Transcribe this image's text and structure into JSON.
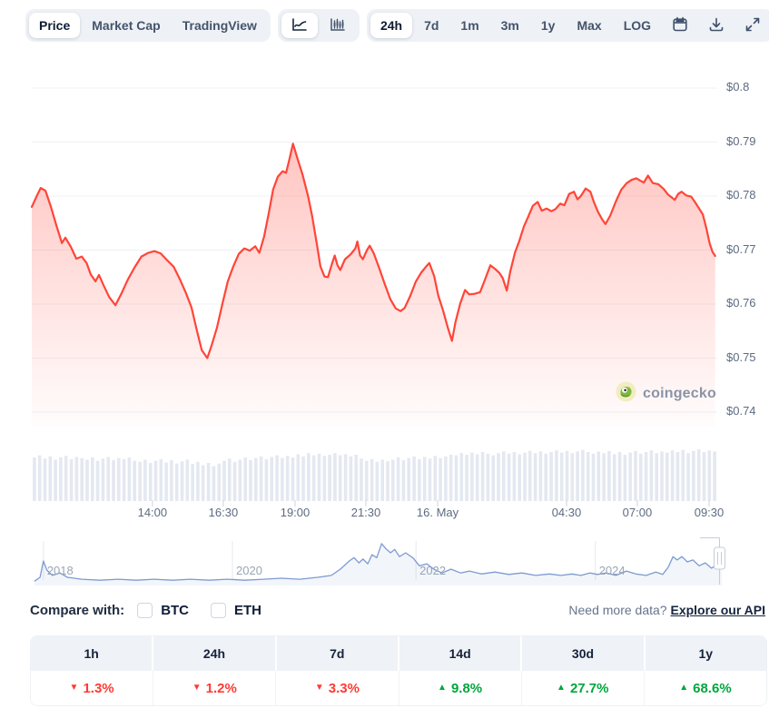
{
  "toolbar": {
    "view_tabs": [
      {
        "label": "Price",
        "selected": true
      },
      {
        "label": "Market Cap",
        "selected": false
      },
      {
        "label": "TradingView",
        "selected": false
      }
    ],
    "chart_types": [
      {
        "icon": "line-chart",
        "selected": true
      },
      {
        "icon": "candlestick-chart",
        "selected": false
      }
    ],
    "ranges": [
      {
        "label": "24h",
        "selected": true
      },
      {
        "label": "7d",
        "selected": false
      },
      {
        "label": "1m",
        "selected": false
      },
      {
        "label": "3m",
        "selected": false
      },
      {
        "label": "1y",
        "selected": false
      },
      {
        "label": "Max",
        "selected": false
      },
      {
        "label": "LOG",
        "selected": false
      }
    ],
    "tools": [
      "calendar",
      "download",
      "fullscreen"
    ]
  },
  "watermark": {
    "brand": "coingecko"
  },
  "colors": {
    "price_line": "#ff4538",
    "area_fill": "rgba(255,77,65,0.33)",
    "down_red": "#ff3a33",
    "up_green": "#00a63d",
    "volume_bar": "#e4e8f0",
    "navigator_line": "#7d9bd2"
  },
  "chart_data": [
    {
      "type": "area",
      "name": "price-24h",
      "ylabel": "price (USD)",
      "ylim": [
        0.7373,
        0.8045
      ],
      "grid": true,
      "legend_position": "none",
      "y_ticks": [
        "$0.8",
        "$0.79",
        "$0.78",
        "$0.77",
        "$0.76",
        "$0.75",
        "$0.74"
      ],
      "y_tick_values": [
        0.8,
        0.79,
        0.78,
        0.77,
        0.76,
        0.75,
        0.74
      ],
      "x_ticks": [
        {
          "label": "14:00",
          "f": 0.176
        },
        {
          "label": "16:30",
          "f": 0.2794
        },
        {
          "label": "19:00",
          "f": 0.3841
        },
        {
          "label": "21:30",
          "f": 0.4874
        },
        {
          "label": "16. May",
          "f": 0.5921
        },
        {
          "label": "04:30",
          "f": 0.7801
        },
        {
          "label": "07:00",
          "f": 0.8834
        },
        {
          "label": "09:30",
          "f": 0.9881
        }
      ],
      "points": [
        [
          0,
          0.778
        ],
        [
          0.008,
          0.7802
        ],
        [
          0.013,
          0.7815
        ],
        [
          0.02,
          0.781
        ],
        [
          0.028,
          0.778
        ],
        [
          0.036,
          0.7745
        ],
        [
          0.044,
          0.7713
        ],
        [
          0.049,
          0.7723
        ],
        [
          0.057,
          0.7706
        ],
        [
          0.065,
          0.7684
        ],
        [
          0.073,
          0.7688
        ],
        [
          0.08,
          0.7676
        ],
        [
          0.086,
          0.7655
        ],
        [
          0.093,
          0.7642
        ],
        [
          0.098,
          0.7654
        ],
        [
          0.105,
          0.7634
        ],
        [
          0.113,
          0.7613
        ],
        [
          0.122,
          0.7598
        ],
        [
          0.131,
          0.762
        ],
        [
          0.14,
          0.7645
        ],
        [
          0.15,
          0.7668
        ],
        [
          0.16,
          0.7688
        ],
        [
          0.17,
          0.7695
        ],
        [
          0.179,
          0.7698
        ],
        [
          0.188,
          0.7694
        ],
        [
          0.197,
          0.7682
        ],
        [
          0.207,
          0.7669
        ],
        [
          0.216,
          0.7646
        ],
        [
          0.225,
          0.762
        ],
        [
          0.233,
          0.7594
        ],
        [
          0.241,
          0.755
        ],
        [
          0.248,
          0.7515
        ],
        [
          0.256,
          0.75
        ],
        [
          0.262,
          0.7522
        ],
        [
          0.27,
          0.7556
        ],
        [
          0.278,
          0.76
        ],
        [
          0.286,
          0.7642
        ],
        [
          0.294,
          0.767
        ],
        [
          0.302,
          0.7693
        ],
        [
          0.31,
          0.7703
        ],
        [
          0.318,
          0.7699
        ],
        [
          0.326,
          0.7707
        ],
        [
          0.332,
          0.7695
        ],
        [
          0.339,
          0.7725
        ],
        [
          0.346,
          0.777
        ],
        [
          0.352,
          0.7812
        ],
        [
          0.359,
          0.7836
        ],
        [
          0.366,
          0.7846
        ],
        [
          0.371,
          0.7843
        ],
        [
          0.376,
          0.7869
        ],
        [
          0.381,
          0.7897
        ],
        [
          0.388,
          0.7868
        ],
        [
          0.395,
          0.784
        ],
        [
          0.403,
          0.78
        ],
        [
          0.409,
          0.7763
        ],
        [
          0.416,
          0.771
        ],
        [
          0.421,
          0.767
        ],
        [
          0.427,
          0.7651
        ],
        [
          0.432,
          0.765
        ],
        [
          0.438,
          0.7675
        ],
        [
          0.442,
          0.769
        ],
        [
          0.446,
          0.7672
        ],
        [
          0.45,
          0.7663
        ],
        [
          0.457,
          0.7683
        ],
        [
          0.465,
          0.7692
        ],
        [
          0.472,
          0.7703
        ],
        [
          0.475,
          0.7716
        ],
        [
          0.479,
          0.769
        ],
        [
          0.483,
          0.7683
        ],
        [
          0.489,
          0.77
        ],
        [
          0.493,
          0.7708
        ],
        [
          0.499,
          0.7694
        ],
        [
          0.507,
          0.7666
        ],
        [
          0.515,
          0.7637
        ],
        [
          0.523,
          0.7609
        ],
        [
          0.531,
          0.7592
        ],
        [
          0.538,
          0.7587
        ],
        [
          0.544,
          0.7593
        ],
        [
          0.552,
          0.7615
        ],
        [
          0.56,
          0.7641
        ],
        [
          0.568,
          0.7658
        ],
        [
          0.575,
          0.7669
        ],
        [
          0.58,
          0.7676
        ],
        [
          0.587,
          0.7652
        ],
        [
          0.593,
          0.7616
        ],
        [
          0.6,
          0.7588
        ],
        [
          0.607,
          0.7556
        ],
        [
          0.613,
          0.7532
        ],
        [
          0.618,
          0.7566
        ],
        [
          0.625,
          0.7601
        ],
        [
          0.632,
          0.7626
        ],
        [
          0.638,
          0.7618
        ],
        [
          0.646,
          0.7619
        ],
        [
          0.654,
          0.7622
        ],
        [
          0.662,
          0.7648
        ],
        [
          0.669,
          0.7672
        ],
        [
          0.675,
          0.7666
        ],
        [
          0.682,
          0.7658
        ],
        [
          0.687,
          0.7648
        ],
        [
          0.693,
          0.7625
        ],
        [
          0.698,
          0.766
        ],
        [
          0.705,
          0.7696
        ],
        [
          0.711,
          0.7716
        ],
        [
          0.718,
          0.7744
        ],
        [
          0.724,
          0.7761
        ],
        [
          0.731,
          0.7782
        ],
        [
          0.738,
          0.7789
        ],
        [
          0.744,
          0.7773
        ],
        [
          0.751,
          0.7777
        ],
        [
          0.758,
          0.7772
        ],
        [
          0.764,
          0.7776
        ],
        [
          0.771,
          0.7786
        ],
        [
          0.777,
          0.7783
        ],
        [
          0.784,
          0.7804
        ],
        [
          0.791,
          0.7808
        ],
        [
          0.796,
          0.7794
        ],
        [
          0.801,
          0.78
        ],
        [
          0.808,
          0.7814
        ],
        [
          0.815,
          0.7808
        ],
        [
          0.82,
          0.7789
        ],
        [
          0.826,
          0.7771
        ],
        [
          0.832,
          0.7757
        ],
        [
          0.837,
          0.7748
        ],
        [
          0.844,
          0.7764
        ],
        [
          0.852,
          0.779
        ],
        [
          0.86,
          0.7812
        ],
        [
          0.868,
          0.7824
        ],
        [
          0.875,
          0.783
        ],
        [
          0.882,
          0.7833
        ],
        [
          0.887,
          0.7829
        ],
        [
          0.893,
          0.7825
        ],
        [
          0.899,
          0.7838
        ],
        [
          0.906,
          0.7824
        ],
        [
          0.914,
          0.7822
        ],
        [
          0.922,
          0.7813
        ],
        [
          0.928,
          0.7803
        ],
        [
          0.934,
          0.7797
        ],
        [
          0.938,
          0.7793
        ],
        [
          0.943,
          0.7804
        ],
        [
          0.948,
          0.7808
        ],
        [
          0.955,
          0.7801
        ],
        [
          0.962,
          0.7799
        ],
        [
          0.968,
          0.7788
        ],
        [
          0.973,
          0.7778
        ],
        [
          0.979,
          0.7766
        ],
        [
          0.984,
          0.7741
        ],
        [
          0.989,
          0.7712
        ],
        [
          0.993,
          0.7697
        ],
        [
          0.997,
          0.7689
        ]
      ]
    },
    {
      "type": "bar",
      "name": "volume-24h",
      "color": "#e4e8f0",
      "values": [
        0.8,
        0.84,
        0.78,
        0.82,
        0.76,
        0.8,
        0.83,
        0.77,
        0.81,
        0.79,
        0.76,
        0.8,
        0.74,
        0.78,
        0.81,
        0.75,
        0.79,
        0.77,
        0.8,
        0.74,
        0.72,
        0.76,
        0.7,
        0.74,
        0.77,
        0.71,
        0.75,
        0.69,
        0.73,
        0.76,
        0.68,
        0.72,
        0.66,
        0.7,
        0.64,
        0.69,
        0.74,
        0.78,
        0.72,
        0.76,
        0.8,
        0.75,
        0.79,
        0.82,
        0.77,
        0.81,
        0.84,
        0.79,
        0.83,
        0.8,
        0.86,
        0.82,
        0.88,
        0.84,
        0.87,
        0.83,
        0.85,
        0.88,
        0.84,
        0.86,
        0.82,
        0.85,
        0.78,
        0.74,
        0.77,
        0.72,
        0.76,
        0.73,
        0.76,
        0.8,
        0.75,
        0.79,
        0.82,
        0.77,
        0.81,
        0.78,
        0.83,
        0.79,
        0.82,
        0.85,
        0.84,
        0.88,
        0.85,
        0.89,
        0.86,
        0.9,
        0.87,
        0.84,
        0.88,
        0.91,
        0.87,
        0.9,
        0.86,
        0.89,
        0.92,
        0.88,
        0.91,
        0.87,
        0.9,
        0.93,
        0.89,
        0.92,
        0.88,
        0.91,
        0.94,
        0.9,
        0.87,
        0.91,
        0.88,
        0.92,
        0.86,
        0.9,
        0.85,
        0.89,
        0.92,
        0.87,
        0.9,
        0.93,
        0.88,
        0.91,
        0.89,
        0.93,
        0.9,
        0.94,
        0.88,
        0.92,
        0.95,
        0.9,
        0.93,
        0.91
      ]
    },
    {
      "type": "line",
      "name": "history-navigator",
      "color": "#7d9bd2",
      "years": [
        {
          "label": "2018",
          "f": 0.013
        },
        {
          "label": "2020",
          "f": 0.288
        },
        {
          "label": "2022",
          "f": 0.555
        },
        {
          "label": "2024",
          "f": 0.816
        }
      ],
      "points": [
        [
          0,
          0.91
        ],
        [
          0.008,
          0.83
        ],
        [
          0.013,
          0.49
        ],
        [
          0.018,
          0.68
        ],
        [
          0.026,
          0.79
        ],
        [
          0.037,
          0.74
        ],
        [
          0.048,
          0.83
        ],
        [
          0.069,
          0.87
        ],
        [
          0.095,
          0.89
        ],
        [
          0.122,
          0.87
        ],
        [
          0.148,
          0.89
        ],
        [
          0.174,
          0.87
        ],
        [
          0.201,
          0.89
        ],
        [
          0.227,
          0.87
        ],
        [
          0.254,
          0.89
        ],
        [
          0.28,
          0.87
        ],
        [
          0.306,
          0.89
        ],
        [
          0.333,
          0.87
        ],
        [
          0.359,
          0.85
        ],
        [
          0.386,
          0.87
        ],
        [
          0.412,
          0.83
        ],
        [
          0.432,
          0.79
        ],
        [
          0.445,
          0.66
        ],
        [
          0.458,
          0.49
        ],
        [
          0.465,
          0.42
        ],
        [
          0.472,
          0.53
        ],
        [
          0.478,
          0.45
        ],
        [
          0.485,
          0.55
        ],
        [
          0.491,
          0.36
        ],
        [
          0.498,
          0.42
        ],
        [
          0.505,
          0.13
        ],
        [
          0.511,
          0.23
        ],
        [
          0.518,
          0.32
        ],
        [
          0.524,
          0.25
        ],
        [
          0.531,
          0.4
        ],
        [
          0.54,
          0.32
        ],
        [
          0.551,
          0.43
        ],
        [
          0.56,
          0.59
        ],
        [
          0.571,
          0.55
        ],
        [
          0.581,
          0.66
        ],
        [
          0.593,
          0.74
        ],
        [
          0.606,
          0.66
        ],
        [
          0.62,
          0.74
        ],
        [
          0.633,
          0.7
        ],
        [
          0.65,
          0.76
        ],
        [
          0.67,
          0.72
        ],
        [
          0.69,
          0.77
        ],
        [
          0.709,
          0.74
        ],
        [
          0.729,
          0.79
        ],
        [
          0.749,
          0.76
        ],
        [
          0.766,
          0.79
        ],
        [
          0.782,
          0.76
        ],
        [
          0.795,
          0.79
        ],
        [
          0.808,
          0.74
        ],
        [
          0.819,
          0.77
        ],
        [
          0.832,
          0.74
        ],
        [
          0.846,
          0.79
        ],
        [
          0.861,
          0.7
        ],
        [
          0.875,
          0.76
        ],
        [
          0.89,
          0.79
        ],
        [
          0.904,
          0.72
        ],
        [
          0.914,
          0.77
        ],
        [
          0.922,
          0.62
        ],
        [
          0.929,
          0.4
        ],
        [
          0.935,
          0.47
        ],
        [
          0.942,
          0.4
        ],
        [
          0.95,
          0.51
        ],
        [
          0.958,
          0.47
        ],
        [
          0.967,
          0.59
        ],
        [
          0.976,
          0.53
        ],
        [
          0.985,
          0.64
        ],
        [
          0.993,
          0.57
        ],
        [
          1,
          0.62
        ]
      ]
    }
  ],
  "compare": {
    "label": "Compare with:",
    "options": [
      {
        "label": "BTC",
        "checked": false
      },
      {
        "label": "ETH",
        "checked": false
      }
    ]
  },
  "api_promo": {
    "prompt": "Need more data?",
    "link_label": "Explore our API"
  },
  "performance_table": {
    "columns": [
      {
        "label": "1h",
        "change": "1.3%",
        "direction": "down"
      },
      {
        "label": "24h",
        "change": "1.2%",
        "direction": "down"
      },
      {
        "label": "7d",
        "change": "3.3%",
        "direction": "down"
      },
      {
        "label": "14d",
        "change": "9.8%",
        "direction": "up"
      },
      {
        "label": "30d",
        "change": "27.7%",
        "direction": "up"
      },
      {
        "label": "1y",
        "change": "68.6%",
        "direction": "up"
      }
    ]
  }
}
